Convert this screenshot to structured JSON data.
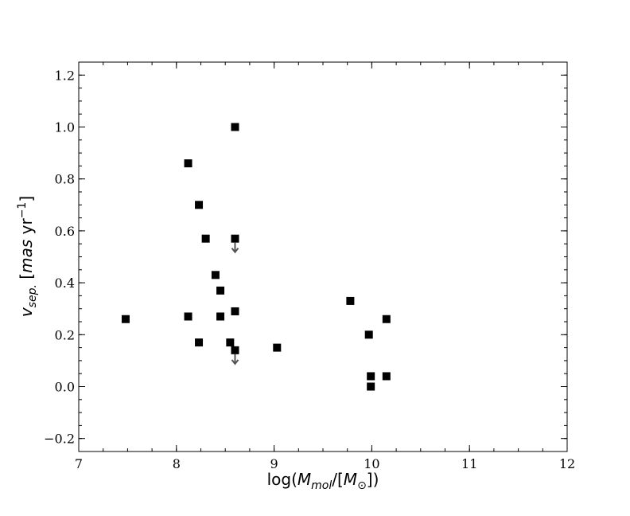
{
  "chart_data": {
    "type": "scatter",
    "title": "",
    "xlabel": {
      "pre": "log(",
      "var": "M",
      "sub": "mol",
      "mid": "/[",
      "var2": "M",
      "sub2": "⊙",
      "post": "])"
    },
    "ylabel": {
      "var": "v",
      "sub": "sep.",
      "unit_open": " [",
      "unit_var": "mas",
      "unit_rest": " yr",
      "sup": "−1",
      "close": "]"
    },
    "xlim": [
      7,
      12
    ],
    "ylim": [
      -0.25,
      1.25
    ],
    "xticks": [
      {
        "value": 7,
        "label": "7"
      },
      {
        "value": 8,
        "label": "8"
      },
      {
        "value": 9,
        "label": "9"
      },
      {
        "value": 10,
        "label": "10"
      },
      {
        "value": 11,
        "label": "11"
      },
      {
        "value": 12,
        "label": "12"
      }
    ],
    "yticks": [
      {
        "value": -0.2,
        "label": "−0.2"
      },
      {
        "value": 0.0,
        "label": "0.0"
      },
      {
        "value": 0.2,
        "label": "0.2"
      },
      {
        "value": 0.4,
        "label": "0.4"
      },
      {
        "value": 0.6,
        "label": "0.6"
      },
      {
        "value": 0.8,
        "label": "0.8"
      },
      {
        "value": 1.0,
        "label": "1.0"
      },
      {
        "value": 1.2,
        "label": "1.2"
      }
    ],
    "x_minor_step": 0.25,
    "y_minor_step": 0.05,
    "grid": false,
    "marker": "square",
    "marker_color": "#000000",
    "arrow_color": "#555555",
    "points": [
      {
        "x": 7.48,
        "y": 0.26
      },
      {
        "x": 8.12,
        "y": 0.86
      },
      {
        "x": 8.12,
        "y": 0.27
      },
      {
        "x": 8.23,
        "y": 0.7
      },
      {
        "x": 8.23,
        "y": 0.17
      },
      {
        "x": 8.3,
        "y": 0.57
      },
      {
        "x": 8.4,
        "y": 0.43
      },
      {
        "x": 8.45,
        "y": 0.37
      },
      {
        "x": 8.45,
        "y": 0.27
      },
      {
        "x": 8.55,
        "y": 0.17
      },
      {
        "x": 8.6,
        "y": 1.0
      },
      {
        "x": 8.6,
        "y": 0.57,
        "upper_limit": true
      },
      {
        "x": 8.6,
        "y": 0.29
      },
      {
        "x": 8.6,
        "y": 0.14,
        "upper_limit": true
      },
      {
        "x": 9.03,
        "y": 0.15
      },
      {
        "x": 9.78,
        "y": 0.33
      },
      {
        "x": 9.97,
        "y": 0.2
      },
      {
        "x": 9.99,
        "y": 0.04
      },
      {
        "x": 9.99,
        "y": 0.0
      },
      {
        "x": 10.15,
        "y": 0.26
      },
      {
        "x": 10.15,
        "y": 0.04
      }
    ]
  }
}
